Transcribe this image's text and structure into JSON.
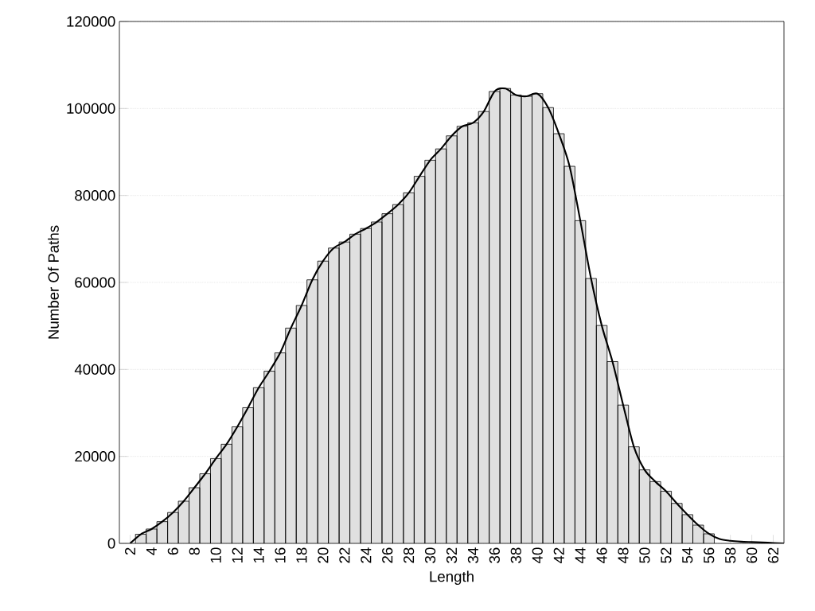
{
  "chart_data": {
    "type": "bar",
    "xlabel": "Length",
    "ylabel": "Number Of Paths",
    "xlim": [
      1,
      63
    ],
    "ylim": [
      0,
      120000
    ],
    "xticks": [
      2,
      4,
      6,
      8,
      10,
      12,
      14,
      16,
      18,
      20,
      22,
      24,
      26,
      28,
      30,
      32,
      34,
      36,
      38,
      40,
      42,
      44,
      46,
      48,
      50,
      52,
      54,
      56,
      58,
      60,
      62
    ],
    "yticks": [
      0,
      20000,
      40000,
      60000,
      80000,
      100000,
      120000
    ],
    "grid": "y",
    "series": [
      {
        "color": "#e0e0e0",
        "x": [
          3,
          4,
          5,
          6,
          7,
          8,
          9,
          10,
          11,
          12,
          13,
          14,
          15,
          16,
          17,
          18,
          19,
          20,
          21,
          22,
          23,
          24,
          25,
          26,
          27,
          28,
          29,
          30,
          31,
          32,
          33,
          34,
          35,
          36,
          37,
          38,
          39,
          40,
          41,
          42,
          43,
          44,
          45,
          46,
          47,
          48,
          49,
          50,
          51,
          52,
          53,
          54,
          55,
          56
        ],
        "values": [
          2100,
          3300,
          5000,
          7100,
          9700,
          12800,
          16000,
          19500,
          22800,
          26800,
          31200,
          35800,
          39600,
          43800,
          49500,
          54700,
          60600,
          64900,
          67900,
          69300,
          71100,
          72400,
          73900,
          75800,
          77900,
          80600,
          84400,
          88100,
          90700,
          93700,
          95900,
          96700,
          99300,
          103900,
          104600,
          103100,
          102800,
          103400,
          100200,
          94200,
          86700,
          74200,
          60900,
          50100,
          41800,
          31800,
          22200,
          16900,
          14200,
          12000,
          9200,
          6600,
          4200,
          2200
        ]
      },
      {
        "type": "line",
        "color": "#000000",
        "x": [
          2,
          3,
          4,
          5,
          6,
          7,
          8,
          9,
          10,
          11,
          12,
          13,
          14,
          15,
          16,
          17,
          18,
          19,
          20,
          21,
          22,
          23,
          24,
          25,
          26,
          27,
          28,
          29,
          30,
          31,
          32,
          33,
          34,
          35,
          36,
          37,
          38,
          39,
          40,
          41,
          42,
          43,
          44,
          45,
          46,
          47,
          48,
          49,
          50,
          51,
          52,
          53,
          54,
          55,
          56,
          57,
          58,
          59,
          60,
          61,
          62,
          63
        ],
        "values": [
          0,
          2100,
          3300,
          5000,
          7100,
          9700,
          12800,
          16000,
          19500,
          22800,
          26800,
          31200,
          35800,
          39600,
          43800,
          49500,
          54700,
          60600,
          64900,
          67900,
          69300,
          71100,
          72400,
          73900,
          75800,
          77900,
          80600,
          84400,
          88100,
          90700,
          93700,
          95900,
          96700,
          99300,
          103900,
          104600,
          103100,
          102800,
          103400,
          100200,
          94200,
          86700,
          74200,
          60900,
          50100,
          41800,
          31800,
          22200,
          16900,
          14200,
          12000,
          9200,
          6600,
          4200,
          2200,
          1000,
          600,
          400,
          300,
          200,
          100,
          0
        ]
      }
    ]
  }
}
